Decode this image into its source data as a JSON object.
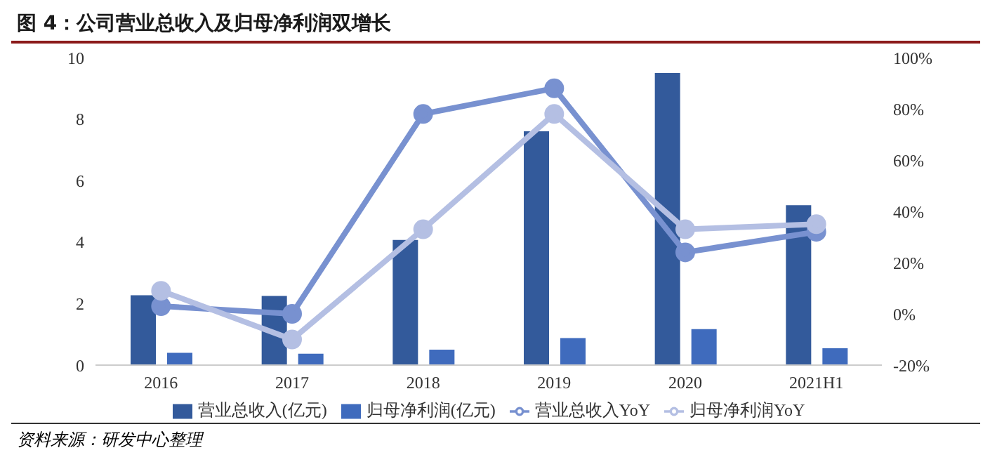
{
  "chart_data": {
    "type": "bar",
    "title": "图 4：公司营业总收入及归母净利润双增长",
    "categories": [
      "2016",
      "2017",
      "2018",
      "2019",
      "2020",
      "2021H1"
    ],
    "series": [
      {
        "name": "营业总收入(亿元)",
        "color": "#335a9b",
        "values": [
          2.27,
          2.25,
          4.07,
          7.6,
          9.5,
          5.2
        ]
      },
      {
        "name": "归母净利润(亿元)",
        "color": "#3f6bbd",
        "values": [
          0.4,
          0.37,
          0.5,
          0.88,
          1.17,
          0.55
        ]
      },
      {
        "name": "营业总收入YoY",
        "type": "line",
        "axis": "y2",
        "color": "#7891d0",
        "values": [
          3,
          0,
          78,
          88,
          24,
          32
        ]
      },
      {
        "name": "归母净利润YoY",
        "type": "line",
        "axis": "y2",
        "color": "#b4bfe3",
        "values": [
          9,
          -10,
          33,
          78,
          33,
          35
        ]
      }
    ],
    "ylim": [
      0,
      10
    ],
    "yticks": [
      0,
      2,
      4,
      6,
      8,
      10
    ],
    "y2lim": [
      -20,
      100
    ],
    "y2ticks": [
      {
        "value": -20,
        "label": "-20%"
      },
      {
        "value": 0,
        "label": "0%"
      },
      {
        "value": 20,
        "label": "20%"
      },
      {
        "value": 40,
        "label": "40%"
      },
      {
        "value": 60,
        "label": "60%"
      },
      {
        "value": 80,
        "label": "80%"
      },
      {
        "value": 100,
        "label": "100%"
      }
    ],
    "marker": "circle",
    "legend": "bottom",
    "annotations": [
      "资料来源：研发中心整理"
    ]
  }
}
